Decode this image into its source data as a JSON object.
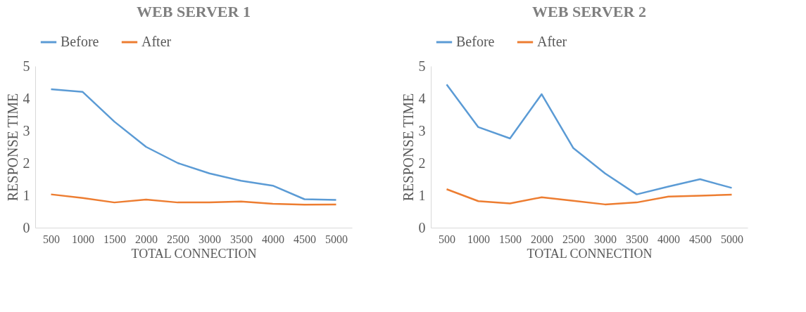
{
  "chart_data": [
    {
      "type": "line",
      "title": "WEB SERVER 1",
      "xlabel": "TOTAL CONNECTION",
      "ylabel": "RESPONSE TIME",
      "categories": [
        "500",
        "1000",
        "1500",
        "2000",
        "2500",
        "3000",
        "3500",
        "4000",
        "4500",
        "5000"
      ],
      "series": [
        {
          "name": "Before",
          "color": "#5b9bd5",
          "values": [
            4.28,
            4.2,
            3.28,
            2.5,
            2.0,
            1.68,
            1.45,
            1.3,
            0.88,
            0.86
          ]
        },
        {
          "name": "After",
          "color": "#ed7d31",
          "values": [
            1.03,
            0.92,
            0.78,
            0.87,
            0.78,
            0.78,
            0.81,
            0.74,
            0.71,
            0.72
          ]
        }
      ],
      "ylim": [
        0,
        5
      ],
      "yticks": [
        0,
        1,
        2,
        3,
        4,
        5
      ],
      "grid": false,
      "legend": "top"
    },
    {
      "type": "line",
      "title": "WEB SERVER 2",
      "xlabel": "TOTAL CONNECTION",
      "ylabel": "RESPONSE TIME",
      "categories": [
        "500",
        "1000",
        "1500",
        "2000",
        "2500",
        "3000",
        "3500",
        "4000",
        "4500",
        "5000"
      ],
      "series": [
        {
          "name": "Before",
          "color": "#5b9bd5",
          "values": [
            4.43,
            3.11,
            2.76,
            4.13,
            2.46,
            1.68,
            1.03,
            1.27,
            1.5,
            1.23
          ]
        },
        {
          "name": "After",
          "color": "#ed7d31",
          "values": [
            1.19,
            0.82,
            0.75,
            0.94,
            0.83,
            0.72,
            0.78,
            0.96,
            0.99,
            1.02
          ]
        }
      ],
      "ylim": [
        0,
        5
      ],
      "yticks": [
        0,
        1,
        2,
        3,
        4,
        5
      ],
      "grid": false,
      "legend": "top"
    }
  ]
}
